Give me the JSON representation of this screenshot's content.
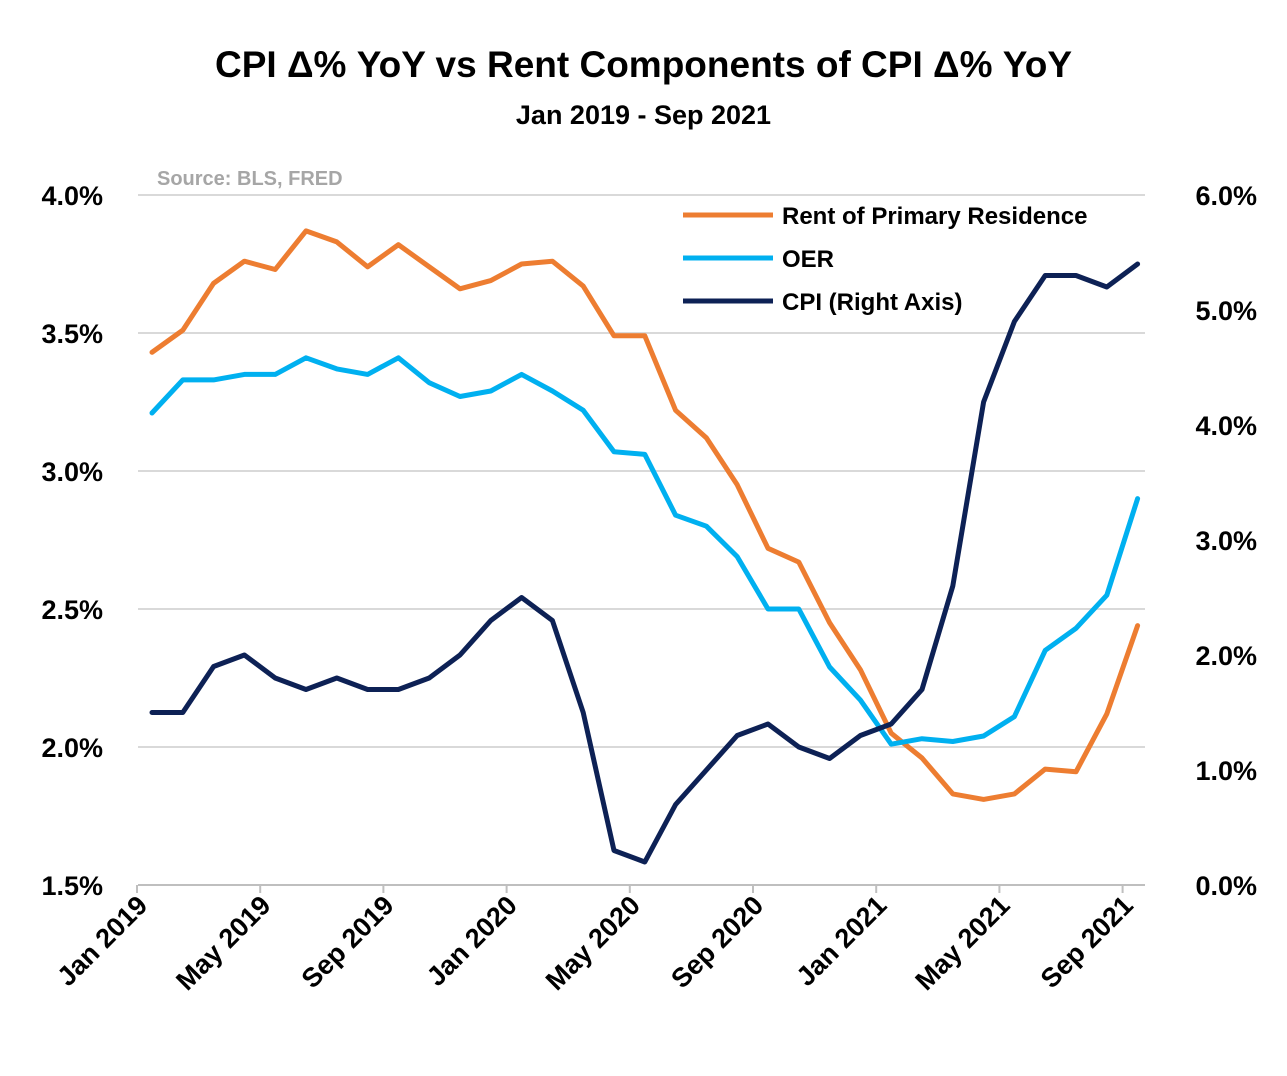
{
  "chart_data": {
    "type": "line",
    "title": "CPI Δ% YoY vs Rent Components of CPI Δ% YoY",
    "subtitle": "Jan 2019 - Sep 2021",
    "source": "Source: BLS, FRED",
    "x": [
      "2019-01",
      "2019-02",
      "2019-03",
      "2019-04",
      "2019-05",
      "2019-06",
      "2019-07",
      "2019-08",
      "2019-09",
      "2019-10",
      "2019-11",
      "2019-12",
      "2020-01",
      "2020-02",
      "2020-03",
      "2020-04",
      "2020-05",
      "2020-06",
      "2020-07",
      "2020-08",
      "2020-09",
      "2020-10",
      "2020-11",
      "2020-12",
      "2021-01",
      "2021-02",
      "2021-03",
      "2021-04",
      "2021-05",
      "2021-06",
      "2021-07",
      "2021-08",
      "2021-09"
    ],
    "x_tick_labels": [
      "Jan 2019",
      "May 2019",
      "Sep 2019",
      "Jan 2020",
      "May 2020",
      "Sep 2020",
      "Jan 2021",
      "May 2021",
      "Sep 2021"
    ],
    "y_left_ticks": [
      "1.5%",
      "2.0%",
      "2.5%",
      "3.0%",
      "3.5%",
      "4.0%"
    ],
    "y_right_ticks": [
      "0.0%",
      "1.0%",
      "2.0%",
      "3.0%",
      "4.0%",
      "5.0%",
      "6.0%"
    ],
    "ylim_left": [
      1.5,
      4.0
    ],
    "ylim_right": [
      0.0,
      6.0
    ],
    "grid": true,
    "legend_position": "top-right",
    "series": [
      {
        "name": "Rent of Primary Residence",
        "axis": "left",
        "color": "#ED7D31",
        "values": [
          3.43,
          3.51,
          3.68,
          3.76,
          3.73,
          3.87,
          3.83,
          3.74,
          3.82,
          3.74,
          3.66,
          3.69,
          3.75,
          3.76,
          3.67,
          3.49,
          3.49,
          3.22,
          3.12,
          2.95,
          2.72,
          2.67,
          2.45,
          2.28,
          2.05,
          1.96,
          1.83,
          1.81,
          1.83,
          1.92,
          1.91,
          2.12,
          2.44
        ]
      },
      {
        "name": "OER",
        "axis": "left",
        "color": "#00B0F0",
        "values": [
          3.21,
          3.33,
          3.33,
          3.35,
          3.35,
          3.41,
          3.37,
          3.35,
          3.41,
          3.32,
          3.27,
          3.29,
          3.35,
          3.29,
          3.22,
          3.07,
          3.06,
          2.84,
          2.8,
          2.69,
          2.5,
          2.5,
          2.29,
          2.17,
          2.01,
          2.03,
          2.02,
          2.04,
          2.11,
          2.35,
          2.43,
          2.55,
          2.9
        ]
      },
      {
        "name": "CPI (Right Axis)",
        "axis": "right",
        "color": "#0D2155",
        "values": [
          1.5,
          1.5,
          1.9,
          2.0,
          1.8,
          1.7,
          1.8,
          1.7,
          1.7,
          1.8,
          2.0,
          2.3,
          2.5,
          2.3,
          1.5,
          0.3,
          0.2,
          0.7,
          1.0,
          1.3,
          1.4,
          1.2,
          1.1,
          1.3,
          1.4,
          1.7,
          2.6,
          4.2,
          4.9,
          5.3,
          5.3,
          5.2,
          5.4
        ]
      }
    ]
  }
}
